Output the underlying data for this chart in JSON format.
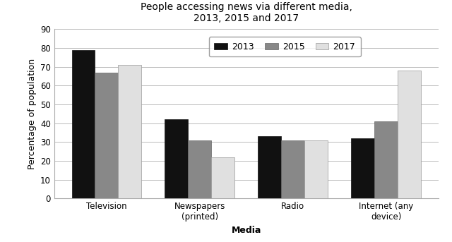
{
  "title": "People accessing news via different media,\n2013, 2015 and 2017",
  "categories": [
    "Television",
    "Newspapers\n(printed)",
    "Radio",
    "Internet (any\ndevice)"
  ],
  "years": [
    "2013",
    "2015",
    "2017"
  ],
  "values": {
    "2013": [
      79,
      42,
      33,
      32
    ],
    "2015": [
      67,
      31,
      31,
      41
    ],
    "2017": [
      71,
      22,
      31,
      68
    ]
  },
  "bar_colors": {
    "2013": "#111111",
    "2015": "#888888",
    "2017": "#e0e0e0"
  },
  "bar_edgecolors": {
    "2013": "#111111",
    "2015": "#666666",
    "2017": "#999999"
  },
  "xlabel": "Media",
  "ylabel": "Percentage of population",
  "ylim": [
    0,
    90
  ],
  "yticks": [
    0,
    10,
    20,
    30,
    40,
    50,
    60,
    70,
    80,
    90
  ],
  "background_color": "#ffffff",
  "grid_color": "#bbbbbb",
  "title_fontsize": 10,
  "axis_label_fontsize": 9,
  "tick_fontsize": 8.5,
  "legend_fontsize": 9
}
